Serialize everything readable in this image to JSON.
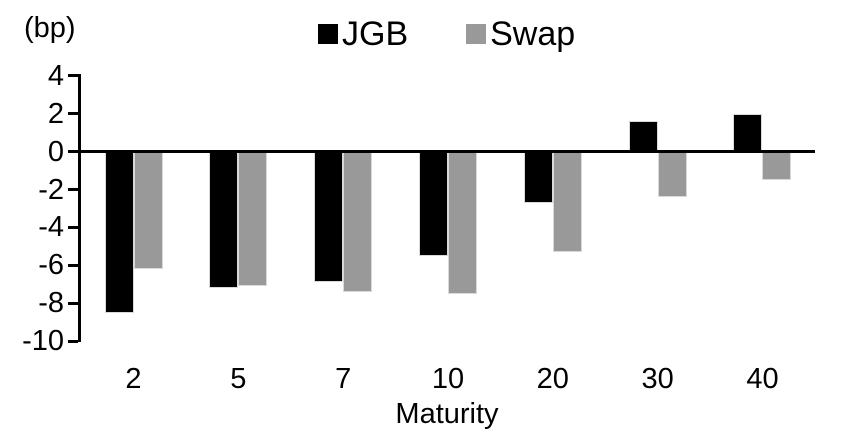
{
  "chart_data": {
    "type": "bar",
    "title": "",
    "unit_label": "(bp)",
    "xlabel": "Maturity",
    "categories": [
      "2",
      "5",
      "7",
      "10",
      "20",
      "30",
      "40"
    ],
    "series": [
      {
        "name": "JGB",
        "color": "#000000",
        "values": [
          -8.5,
          -7.2,
          -6.9,
          -5.5,
          -2.7,
          1.6,
          2.0
        ]
      },
      {
        "name": "Swap",
        "color": "#999999",
        "values": [
          -6.2,
          -7.1,
          -7.4,
          -7.5,
          -5.3,
          -2.4,
          -1.5
        ]
      }
    ],
    "y_ticks": [
      4,
      2,
      0,
      -2,
      -4,
      -6,
      -8,
      -10
    ],
    "ylim": [
      -10,
      4
    ],
    "grid": false,
    "legend_position": "top-center",
    "bar_edge_color": "#d9d9d9",
    "axis_color": "#000000"
  }
}
